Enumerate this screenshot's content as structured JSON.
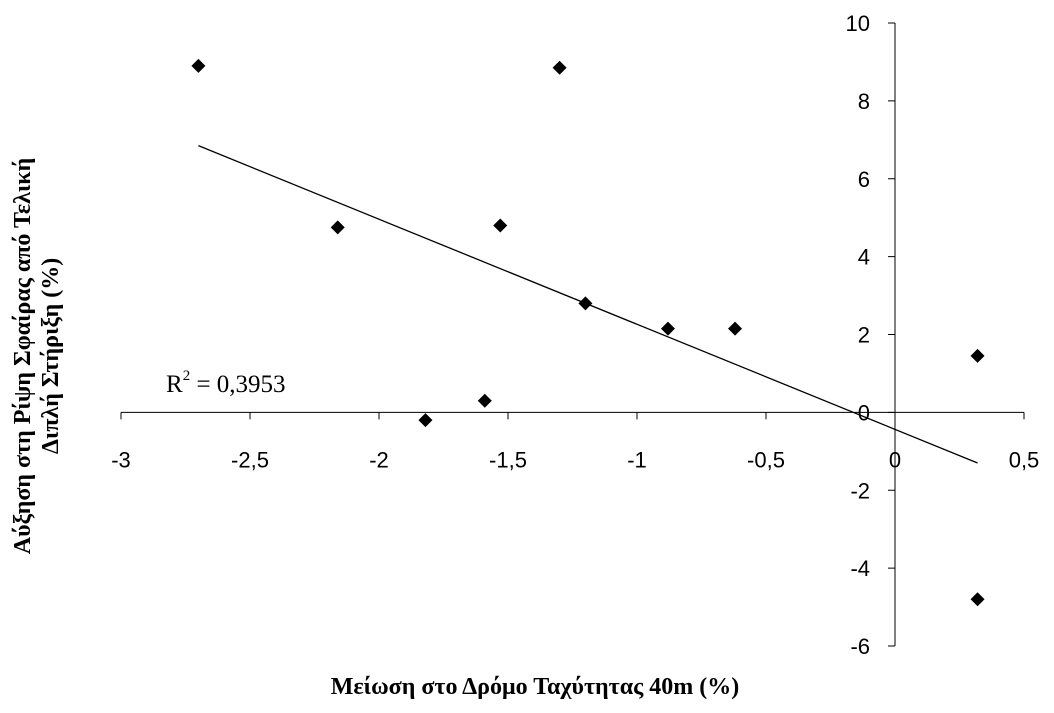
{
  "chart_data": {
    "type": "scatter",
    "title": "",
    "xlabel": "Μείωση στο Δρόμο Ταχύτητας 40m (%)",
    "ylabel_line1": "Αύξηση στη Ρίψη Σφαίρας από Τελική",
    "ylabel_line2": "Διπλή Στήριξη (%)",
    "xlim": [
      -3,
      0.5
    ],
    "ylim": [
      -6,
      10
    ],
    "x_ticks": [
      -3,
      -2.5,
      -2,
      -1.5,
      -1,
      -0.5,
      0,
      0.5
    ],
    "x_tick_labels": [
      "-3",
      "-2,5",
      "-2",
      "-1,5",
      "-1",
      "-0,5",
      "0",
      "0,5"
    ],
    "y_ticks": [
      -6,
      -4,
      -2,
      0,
      2,
      4,
      6,
      8,
      10
    ],
    "y_tick_labels": [
      "-6",
      "-4",
      "-2",
      "0",
      "2",
      "4",
      "6",
      "8",
      "10"
    ],
    "grid": false,
    "marker": "diamond",
    "marker_color": "#000000",
    "series": [
      {
        "points": [
          {
            "x": -2.7,
            "y": 8.9
          },
          {
            "x": -2.16,
            "y": 4.75
          },
          {
            "x": -1.82,
            "y": -0.2
          },
          {
            "x": -1.59,
            "y": 0.3
          },
          {
            "x": -1.53,
            "y": 4.8
          },
          {
            "x": -1.3,
            "y": 8.85
          },
          {
            "x": -1.2,
            "y": 2.8
          },
          {
            "x": -0.88,
            "y": 2.15
          },
          {
            "x": -0.62,
            "y": 2.15
          },
          {
            "x": 0.32,
            "y": 1.45
          },
          {
            "x": 0.32,
            "y": -4.8
          }
        ]
      }
    ],
    "trendline": {
      "type": "linear",
      "from": {
        "x": -2.7,
        "y": 6.85
      },
      "to": {
        "x": 0.32,
        "y": -1.3
      },
      "r2_base": "R",
      "r2_sup": "2",
      "r2_value": " = 0,3953"
    }
  }
}
